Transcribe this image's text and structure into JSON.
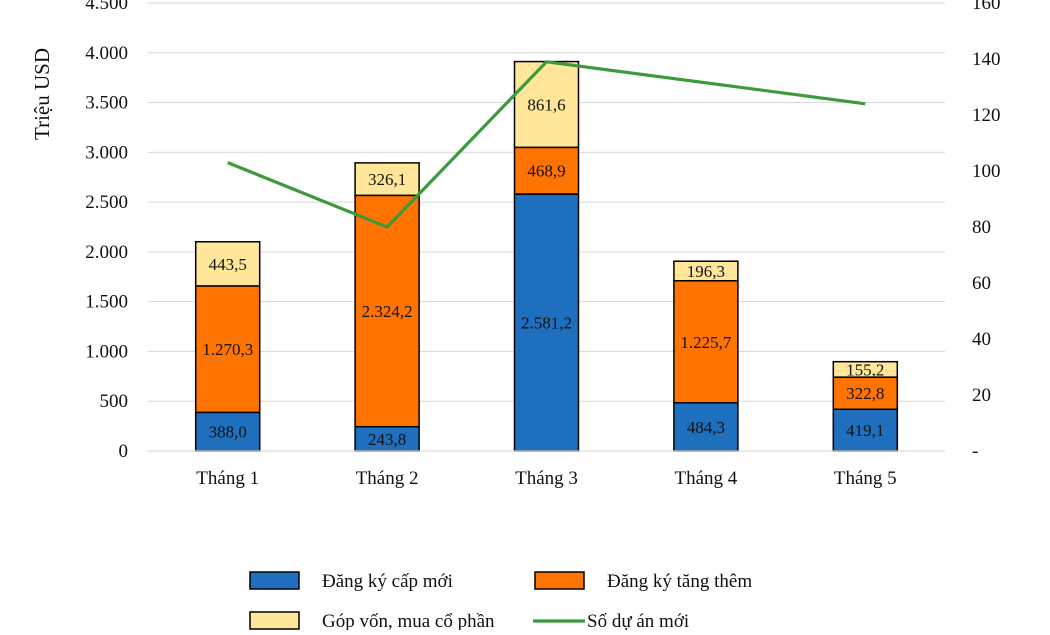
{
  "chart_data": {
    "type": "bar",
    "stacked": true,
    "categories": [
      "Tháng 1",
      "Tháng 2",
      "Tháng 3",
      "Tháng 4",
      "Tháng 5"
    ],
    "series": [
      {
        "name": "Đăng ký cấp mới",
        "color": "#1f6fbf",
        "values": [
          388.0,
          243.8,
          2581.2,
          484.3,
          419.1
        ],
        "labels": [
          "388,0",
          "243,8",
          "2.581,2",
          "484,3",
          "419,1"
        ]
      },
      {
        "name": "Đăng ký tăng thêm",
        "color": "#ff7300",
        "values": [
          1270.3,
          2324.2,
          468.9,
          1225.7,
          322.8
        ],
        "labels": [
          "1.270,3",
          "2.324,2",
          "468,9",
          "1.225,7",
          "322,8"
        ]
      },
      {
        "name": "Góp vốn, mua cổ phần",
        "color": "#ffe699",
        "values": [
          443.5,
          326.1,
          861.6,
          196.3,
          155.2
        ],
        "labels": [
          "443,5",
          "326,1",
          "861,6",
          "196,3",
          "155,2"
        ]
      }
    ],
    "line_series": {
      "name": "Số dự án mới",
      "color": "#3c9a3c",
      "axis": "right",
      "values": [
        103,
        80,
        139,
        null,
        124
      ]
    },
    "ylabel": "Triệu USD",
    "ylim": [
      0,
      4500
    ],
    "y_ticks": [
      0,
      500,
      1000,
      1500,
      2000,
      2500,
      3000,
      3500,
      4000,
      4500
    ],
    "y_tick_labels": [
      "0",
      "500",
      "1.000",
      "1.500",
      "2.000",
      "2.500",
      "3.000",
      "3.500",
      "4.000",
      "4.500"
    ],
    "y2lim": [
      0,
      160
    ],
    "y2_ticks": [
      0,
      20,
      40,
      60,
      80,
      100,
      120,
      140,
      160
    ],
    "y2_tick_labels": [
      "-",
      "20",
      "40",
      "60",
      "80",
      "100",
      "120",
      "140",
      "160"
    ],
    "grid": true,
    "legend_position": "bottom",
    "legend": [
      {
        "label": "Đăng ký cấp mới",
        "kind": "box",
        "color": "#1f6fbf"
      },
      {
        "label": "Đăng ký tăng thêm",
        "kind": "box",
        "color": "#ff7300"
      },
      {
        "label": "Góp vốn, mua cổ phần",
        "kind": "box",
        "color": "#ffe699"
      },
      {
        "label": "Số dự án mới",
        "kind": "line",
        "color": "#3c9a3c"
      }
    ]
  }
}
